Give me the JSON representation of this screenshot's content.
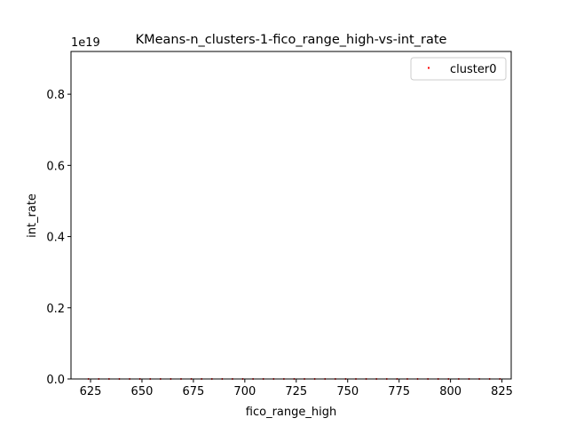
{
  "chart_data": {
    "type": "scatter",
    "title": "KMeans-n_clusters-1-fico_range_high-vs-int_rate",
    "xlabel": "fico_range_high",
    "ylabel": "int_rate",
    "y_offset_label": "1e19",
    "xlim": [
      615.5,
      829.5
    ],
    "ylim": [
      0,
      0.92
    ],
    "xticks": [
      625,
      650,
      675,
      700,
      725,
      750,
      775,
      800,
      825
    ],
    "xtick_labels": [
      "625",
      "650",
      "675",
      "700",
      "725",
      "750",
      "775",
      "800",
      "825"
    ],
    "yticks": [
      0.0,
      0.2,
      0.4,
      0.6,
      0.8
    ],
    "ytick_labels": [
      "0.0",
      "0.2",
      "0.4",
      "0.6",
      "0.8"
    ],
    "legend_position": "top-right",
    "grid": false,
    "series": [
      {
        "name": "cluster0",
        "color": "#ff0000",
        "x": [
          624,
          629,
          634,
          639,
          644,
          649,
          654,
          659,
          664,
          669,
          674,
          679,
          684,
          689,
          694,
          699,
          704,
          709,
          714,
          719,
          724,
          729,
          734,
          739,
          744,
          749,
          754,
          759,
          764,
          769,
          774,
          779,
          784,
          789,
          794,
          799,
          804,
          809,
          814,
          819,
          824
        ],
        "y": [
          0,
          0,
          0,
          0,
          0,
          0,
          0,
          0,
          0,
          0,
          0,
          0,
          0,
          0,
          0,
          0,
          0,
          0,
          0,
          0,
          0,
          0,
          0,
          0,
          0,
          0,
          0,
          0,
          0,
          0,
          0,
          0,
          0,
          0,
          0,
          0,
          0,
          0,
          0,
          0,
          0
        ]
      }
    ]
  }
}
